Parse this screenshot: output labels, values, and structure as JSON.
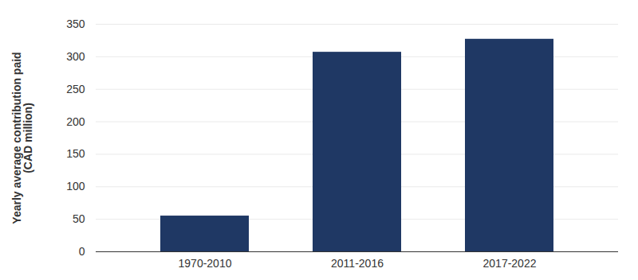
{
  "chart_data": {
    "type": "bar",
    "y_label": "Yearly average contribution paid\n(CAD million)",
    "categories": [
      "1970-2010",
      "2011-2016",
      "2017-2022"
    ],
    "values": [
      55,
      307,
      327
    ],
    "color": "#1f3864",
    "ylim": [
      0,
      350
    ],
    "yticks": [
      0,
      50,
      100,
      150,
      200,
      250,
      300,
      350
    ],
    "grid": true
  }
}
